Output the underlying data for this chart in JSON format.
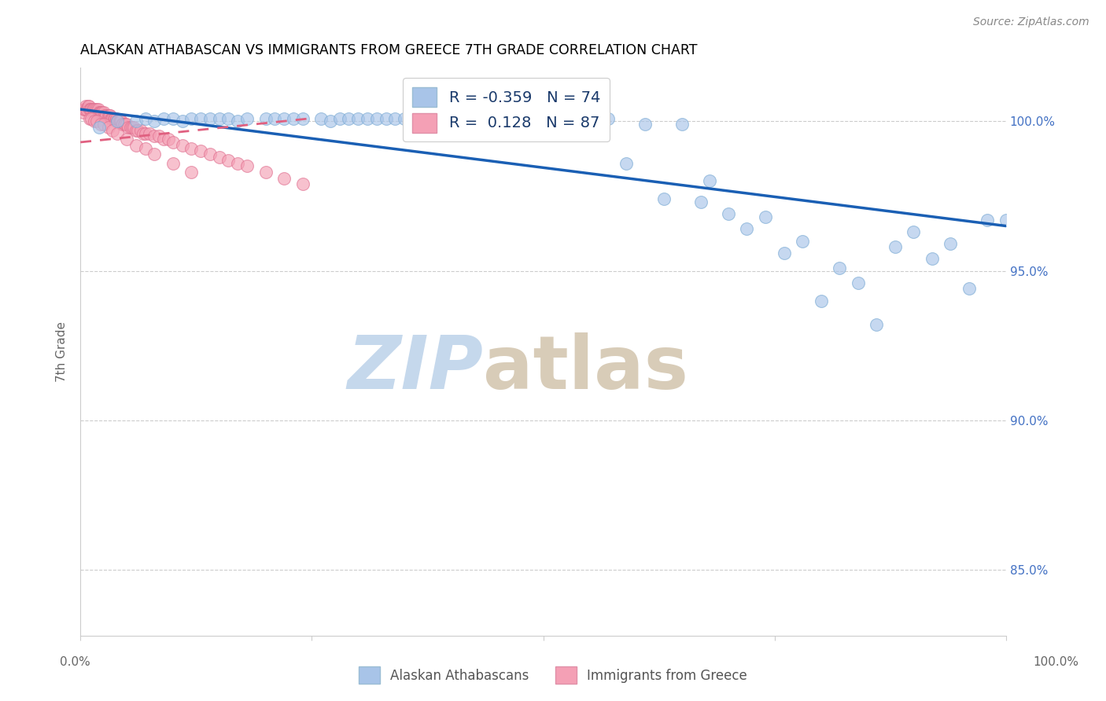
{
  "title": "ALASKAN ATHABASCAN VS IMMIGRANTS FROM GREECE 7TH GRADE CORRELATION CHART",
  "source": "Source: ZipAtlas.com",
  "ylabel": "7th Grade",
  "yticks": [
    0.85,
    0.9,
    0.95,
    1.0
  ],
  "ytick_labels": [
    "85.0%",
    "90.0%",
    "95.0%",
    "100.0%"
  ],
  "xlim": [
    0.0,
    1.0
  ],
  "ylim": [
    0.828,
    1.018
  ],
  "legend_blue_label": "R = -0.359   N = 74",
  "legend_pink_label": "R =  0.128   N = 87",
  "legend_label_blue": "Alaskan Athabascans",
  "legend_label_pink": "Immigrants from Greece",
  "blue_color": "#a8c4e8",
  "blue_edge_color": "#7aaad4",
  "blue_line_color": "#1a5fb4",
  "pink_color": "#f4a0b5",
  "pink_edge_color": "#e07090",
  "pink_line_color": "#e06080",
  "blue_line_x0": 0.0,
  "blue_line_y0": 1.004,
  "blue_line_x1": 1.0,
  "blue_line_y1": 0.965,
  "pink_line_x0": 0.0,
  "pink_line_y0": 0.993,
  "pink_line_x1": 0.25,
  "pink_line_y1": 1.001,
  "blue_scatter_x": [
    0.02,
    0.04,
    0.06,
    0.07,
    0.08,
    0.09,
    0.1,
    0.11,
    0.12,
    0.13,
    0.14,
    0.15,
    0.16,
    0.17,
    0.18,
    0.2,
    0.21,
    0.22,
    0.23,
    0.24,
    0.26,
    0.27,
    0.28,
    0.29,
    0.3,
    0.31,
    0.32,
    0.33,
    0.34,
    0.35,
    0.36,
    0.37,
    0.38,
    0.39,
    0.4,
    0.41,
    0.42,
    0.43,
    0.44,
    0.45,
    0.46,
    0.47,
    0.48,
    0.49,
    0.5,
    0.51,
    0.52,
    0.53,
    0.54,
    0.55,
    0.56,
    0.57,
    0.59,
    0.61,
    0.63,
    0.65,
    0.67,
    0.68,
    0.7,
    0.72,
    0.74,
    0.76,
    0.78,
    0.8,
    0.82,
    0.84,
    0.86,
    0.88,
    0.9,
    0.92,
    0.94,
    0.96,
    0.98,
    1.0
  ],
  "blue_scatter_y": [
    0.998,
    1.0,
    1.0,
    1.001,
    1.0,
    1.001,
    1.001,
    1.0,
    1.001,
    1.001,
    1.001,
    1.001,
    1.001,
    1.0,
    1.001,
    1.001,
    1.001,
    1.001,
    1.001,
    1.001,
    1.001,
    1.0,
    1.001,
    1.001,
    1.001,
    1.001,
    1.001,
    1.001,
    1.001,
    1.001,
    1.0,
    1.001,
    1.001,
    1.001,
    1.001,
    1.001,
    1.001,
    1.001,
    1.001,
    1.001,
    1.001,
    1.001,
    1.001,
    1.001,
    1.001,
    0.998,
    1.001,
    1.001,
    1.001,
    0.998,
    1.001,
    1.001,
    0.986,
    0.999,
    0.974,
    0.999,
    0.973,
    0.98,
    0.969,
    0.964,
    0.968,
    0.956,
    0.96,
    0.94,
    0.951,
    0.946,
    0.932,
    0.958,
    0.963,
    0.954,
    0.959,
    0.944,
    0.967,
    0.967
  ],
  "pink_scatter_x": [
    0.003,
    0.004,
    0.005,
    0.006,
    0.007,
    0.008,
    0.009,
    0.01,
    0.011,
    0.012,
    0.013,
    0.014,
    0.015,
    0.016,
    0.017,
    0.018,
    0.019,
    0.02,
    0.021,
    0.022,
    0.023,
    0.024,
    0.025,
    0.026,
    0.027,
    0.028,
    0.03,
    0.031,
    0.032,
    0.033,
    0.034,
    0.035,
    0.036,
    0.037,
    0.038,
    0.039,
    0.04,
    0.041,
    0.042,
    0.043,
    0.044,
    0.045,
    0.046,
    0.047,
    0.048,
    0.05,
    0.052,
    0.054,
    0.056,
    0.058,
    0.06,
    0.062,
    0.065,
    0.068,
    0.07,
    0.075,
    0.08,
    0.085,
    0.09,
    0.095,
    0.1,
    0.11,
    0.12,
    0.13,
    0.14,
    0.15,
    0.16,
    0.17,
    0.18,
    0.2,
    0.22,
    0.24,
    0.01,
    0.012,
    0.015,
    0.018,
    0.022,
    0.025,
    0.03,
    0.035,
    0.04,
    0.05,
    0.06,
    0.07,
    0.08,
    0.1,
    0.12
  ],
  "pink_scatter_y": [
    1.003,
    1.004,
    1.004,
    1.005,
    1.004,
    1.005,
    1.005,
    1.004,
    1.004,
    1.004,
    1.004,
    1.004,
    1.003,
    1.004,
    1.003,
    1.004,
    1.004,
    1.003,
    1.003,
    1.003,
    1.003,
    1.003,
    1.003,
    1.002,
    1.002,
    1.002,
    1.002,
    1.002,
    1.002,
    1.001,
    1.001,
    1.001,
    1.001,
    1.001,
    1.0,
    1.001,
    1.0,
    1.0,
    1.0,
    1.0,
    1.0,
    0.999,
    0.999,
    0.999,
    0.999,
    0.999,
    0.998,
    0.998,
    0.998,
    0.998,
    0.997,
    0.997,
    0.997,
    0.996,
    0.996,
    0.996,
    0.995,
    0.995,
    0.994,
    0.994,
    0.993,
    0.992,
    0.991,
    0.99,
    0.989,
    0.988,
    0.987,
    0.986,
    0.985,
    0.983,
    0.981,
    0.979,
    1.001,
    1.001,
    1.0,
    1.0,
    0.999,
    0.999,
    0.998,
    0.997,
    0.996,
    0.994,
    0.992,
    0.991,
    0.989,
    0.986,
    0.983
  ]
}
